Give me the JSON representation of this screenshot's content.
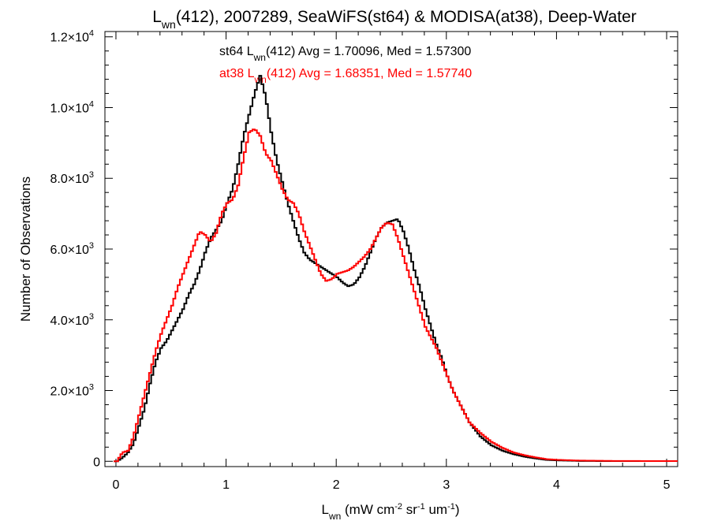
{
  "chart_data": {
    "type": "line",
    "title": {
      "main": "L",
      "sub": "wn",
      "rest": "(412), 2007289, SeaWiFS(st64) & MODISA(at38), Deep-Water"
    },
    "xlabel": {
      "main": "L",
      "sub": "wn",
      "unit_open": " (mW cm",
      "sup1": "-2",
      "sr": " sr",
      "sup2": "-1",
      "um": " um",
      "sup3": "-1",
      "close": ")"
    },
    "ylabel": "Number of Observations",
    "xlim": [
      -0.1,
      5.1
    ],
    "ylim": [
      -150,
      12150
    ],
    "xticks": [
      {
        "value": 0,
        "label": "0"
      },
      {
        "value": 1,
        "label": "1"
      },
      {
        "value": 2,
        "label": "2"
      },
      {
        "value": 3,
        "label": "3"
      },
      {
        "value": 4,
        "label": "4"
      },
      {
        "value": 5,
        "label": "5"
      }
    ],
    "yticks": [
      {
        "value": 0,
        "mant": "0",
        "exp": ""
      },
      {
        "value": 2000,
        "mant": "2.0×10",
        "exp": "3"
      },
      {
        "value": 4000,
        "mant": "4.0×10",
        "exp": "3"
      },
      {
        "value": 6000,
        "mant": "6.0×10",
        "exp": "3"
      },
      {
        "value": 8000,
        "mant": "8.0×10",
        "exp": "3"
      },
      {
        "value": 10000,
        "mant": "1.0×10",
        "exp": "4"
      },
      {
        "value": 12000,
        "mant": "1.2×10",
        "exp": "4"
      }
    ],
    "legend": [
      {
        "prefix": "st64 L",
        "sub": "wn",
        "suffix": "(412) Avg = 1.70096, Med = 1.57300",
        "color": "#000000"
      },
      {
        "prefix": "at38 L",
        "sub": "wn",
        "suffix": "(412) Avg = 1.68351, Med = 1.57740",
        "color": "#ff0000"
      }
    ],
    "series": [
      {
        "color": "#000000",
        "points": [
          [
            0.0,
            0
          ],
          [
            0.05,
            100
          ],
          [
            0.1,
            250
          ],
          [
            0.15,
            500
          ],
          [
            0.2,
            1000
          ],
          [
            0.25,
            1500
          ],
          [
            0.3,
            2200
          ],
          [
            0.35,
            2800
          ],
          [
            0.4,
            3200
          ],
          [
            0.45,
            3400
          ],
          [
            0.5,
            3700
          ],
          [
            0.55,
            4000
          ],
          [
            0.6,
            4300
          ],
          [
            0.65,
            4700
          ],
          [
            0.7,
            5000
          ],
          [
            0.75,
            5400
          ],
          [
            0.8,
            5900
          ],
          [
            0.85,
            6300
          ],
          [
            0.9,
            6550
          ],
          [
            0.95,
            6800
          ],
          [
            1.0,
            7300
          ],
          [
            1.05,
            7700
          ],
          [
            1.1,
            8400
          ],
          [
            1.15,
            9200
          ],
          [
            1.2,
            9800
          ],
          [
            1.25,
            10400
          ],
          [
            1.3,
            10900
          ],
          [
            1.35,
            10300
          ],
          [
            1.4,
            9300
          ],
          [
            1.45,
            8500
          ],
          [
            1.5,
            7900
          ],
          [
            1.55,
            7300
          ],
          [
            1.6,
            6800
          ],
          [
            1.65,
            6300
          ],
          [
            1.7,
            5900
          ],
          [
            1.75,
            5700
          ],
          [
            1.8,
            5600
          ],
          [
            1.85,
            5500
          ],
          [
            1.9,
            5400
          ],
          [
            1.95,
            5300
          ],
          [
            2.0,
            5200
          ],
          [
            2.05,
            5050
          ],
          [
            2.1,
            4950
          ],
          [
            2.15,
            5000
          ],
          [
            2.2,
            5200
          ],
          [
            2.25,
            5500
          ],
          [
            2.3,
            5900
          ],
          [
            2.35,
            6300
          ],
          [
            2.4,
            6600
          ],
          [
            2.45,
            6750
          ],
          [
            2.5,
            6800
          ],
          [
            2.55,
            6850
          ],
          [
            2.6,
            6500
          ],
          [
            2.65,
            6000
          ],
          [
            2.7,
            5400
          ],
          [
            2.75,
            4900
          ],
          [
            2.8,
            4300
          ],
          [
            2.85,
            3800
          ],
          [
            2.9,
            3300
          ],
          [
            2.95,
            2900
          ],
          [
            3.0,
            2400
          ],
          [
            3.05,
            2000
          ],
          [
            3.1,
            1700
          ],
          [
            3.15,
            1400
          ],
          [
            3.2,
            1100
          ],
          [
            3.3,
            700
          ],
          [
            3.4,
            450
          ],
          [
            3.5,
            300
          ],
          [
            3.6,
            200
          ],
          [
            3.7,
            130
          ],
          [
            3.8,
            80
          ],
          [
            3.9,
            40
          ],
          [
            4.0,
            25
          ],
          [
            4.2,
            10
          ],
          [
            4.5,
            5
          ],
          [
            5.0,
            5
          ]
        ]
      },
      {
        "color": "#ff0000",
        "points": [
          [
            0.0,
            0
          ],
          [
            0.05,
            250
          ],
          [
            0.1,
            300
          ],
          [
            0.15,
            700
          ],
          [
            0.2,
            1300
          ],
          [
            0.25,
            1900
          ],
          [
            0.3,
            2500
          ],
          [
            0.35,
            3100
          ],
          [
            0.4,
            3600
          ],
          [
            0.45,
            4000
          ],
          [
            0.5,
            4400
          ],
          [
            0.55,
            4900
          ],
          [
            0.6,
            5300
          ],
          [
            0.65,
            5700
          ],
          [
            0.7,
            6100
          ],
          [
            0.75,
            6500
          ],
          [
            0.8,
            6400
          ],
          [
            0.85,
            6200
          ],
          [
            0.9,
            6450
          ],
          [
            0.95,
            7000
          ],
          [
            1.0,
            7300
          ],
          [
            1.05,
            7400
          ],
          [
            1.1,
            7800
          ],
          [
            1.15,
            8600
          ],
          [
            1.2,
            9300
          ],
          [
            1.25,
            9400
          ],
          [
            1.3,
            9200
          ],
          [
            1.35,
            8700
          ],
          [
            1.4,
            8500
          ],
          [
            1.45,
            8100
          ],
          [
            1.5,
            7700
          ],
          [
            1.55,
            7400
          ],
          [
            1.6,
            7300
          ],
          [
            1.65,
            7000
          ],
          [
            1.7,
            6500
          ],
          [
            1.75,
            6100
          ],
          [
            1.8,
            5700
          ],
          [
            1.85,
            5300
          ],
          [
            1.9,
            5100
          ],
          [
            1.95,
            5150
          ],
          [
            2.0,
            5300
          ],
          [
            2.05,
            5350
          ],
          [
            2.1,
            5400
          ],
          [
            2.15,
            5500
          ],
          [
            2.2,
            5650
          ],
          [
            2.25,
            5800
          ],
          [
            2.3,
            6000
          ],
          [
            2.35,
            6300
          ],
          [
            2.4,
            6600
          ],
          [
            2.45,
            6750
          ],
          [
            2.5,
            6700
          ],
          [
            2.55,
            6300
          ],
          [
            2.6,
            5800
          ],
          [
            2.65,
            5300
          ],
          [
            2.7,
            4800
          ],
          [
            2.75,
            4300
          ],
          [
            2.8,
            3800
          ],
          [
            2.85,
            3500
          ],
          [
            2.9,
            3200
          ],
          [
            2.95,
            2800
          ],
          [
            3.0,
            2400
          ],
          [
            3.05,
            2000
          ],
          [
            3.1,
            1700
          ],
          [
            3.15,
            1400
          ],
          [
            3.2,
            1100
          ],
          [
            3.3,
            800
          ],
          [
            3.4,
            550
          ],
          [
            3.5,
            380
          ],
          [
            3.6,
            250
          ],
          [
            3.7,
            170
          ],
          [
            3.8,
            110
          ],
          [
            3.9,
            60
          ],
          [
            4.0,
            40
          ],
          [
            4.2,
            20
          ],
          [
            4.5,
            10
          ],
          [
            5.0,
            5
          ]
        ]
      }
    ]
  }
}
